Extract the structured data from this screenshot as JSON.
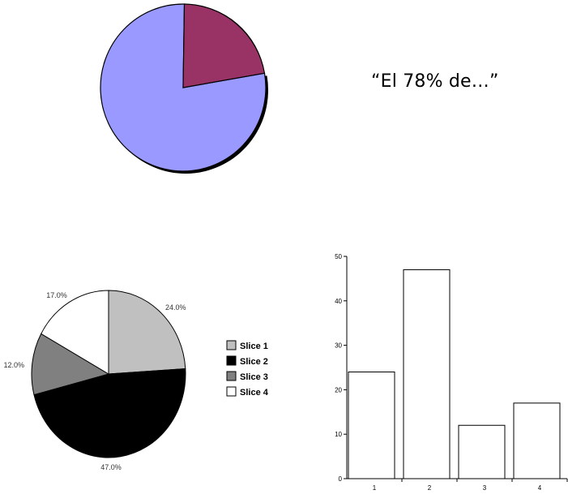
{
  "annotation": {
    "text": "“El 78% de…”"
  },
  "chart_data": [
    {
      "type": "pie",
      "slices": [
        {
          "value": 78,
          "color": "#9999ff"
        },
        {
          "value": 22,
          "color": "#993366"
        }
      ]
    },
    {
      "type": "pie",
      "labels": [
        "Slice 1",
        "Slice 2",
        "Slice 3",
        "Slice 4"
      ],
      "values": [
        24,
        47,
        12,
        17
      ],
      "value_labels": [
        "24.0%",
        "47.0%",
        "12.0%",
        "17.0%"
      ],
      "colors": [
        "#c0c0c0",
        "#000000",
        "#808080",
        "#ffffff"
      ],
      "legend": "right"
    },
    {
      "type": "bar",
      "categories": [
        "1",
        "2",
        "3",
        "4"
      ],
      "values": [
        24,
        47,
        12,
        17
      ],
      "ylim": [
        0,
        50
      ],
      "yticks": [
        "0",
        "10",
        "20",
        "30",
        "40",
        "50"
      ],
      "bar_color": "#ffffff",
      "grid": false
    }
  ]
}
